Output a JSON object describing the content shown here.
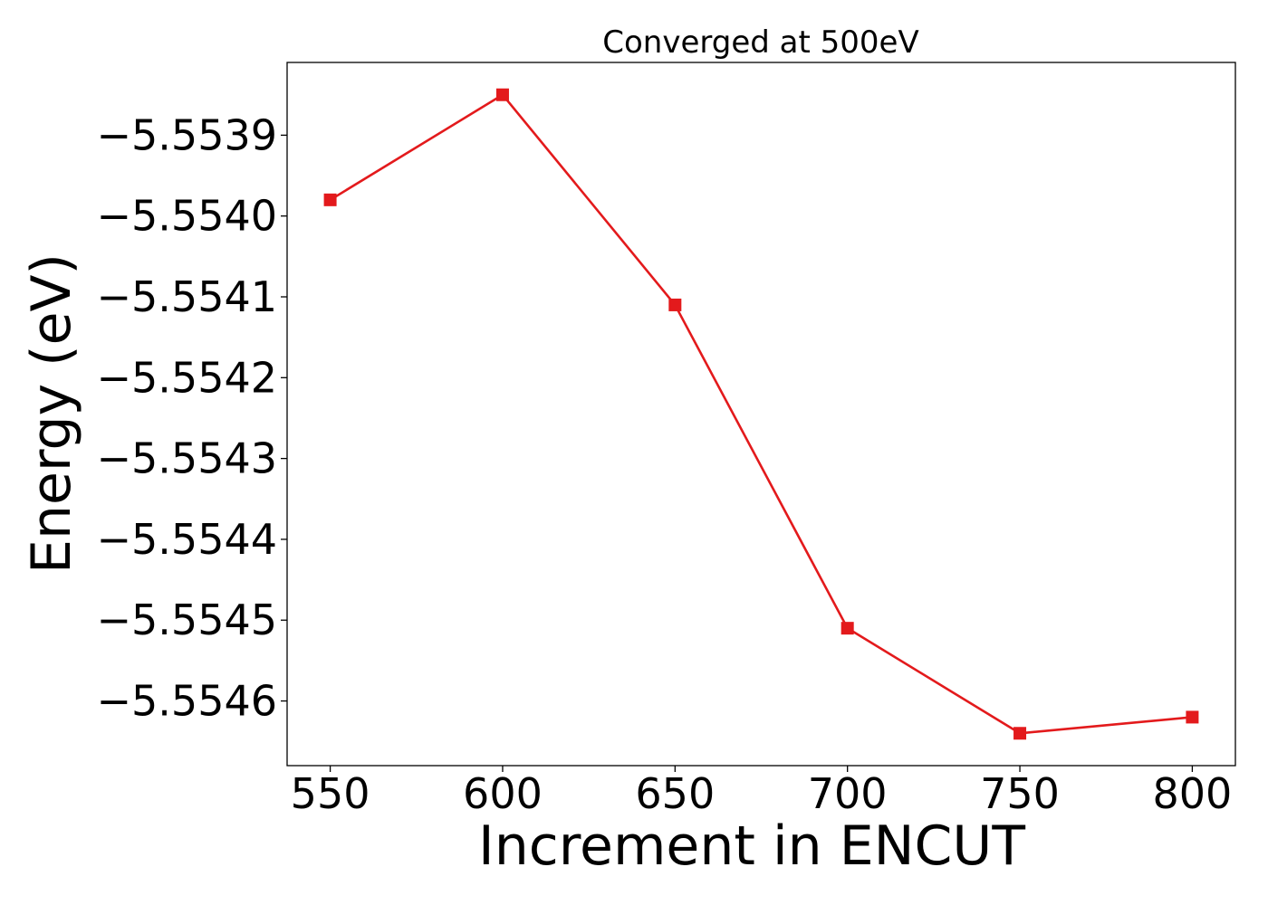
{
  "chart_data": {
    "type": "line",
    "title": "Converged at 500eV",
    "xlabel": "Increment in ENCUT",
    "ylabel": "Energy (eV)",
    "x": [
      550,
      600,
      650,
      700,
      750,
      800
    ],
    "series": [
      {
        "values": [
          -5.55398,
          -5.55385,
          -5.55411,
          -5.55451,
          -5.55464,
          -5.55462
        ],
        "color": "#e31a1c",
        "marker": "square"
      }
    ],
    "xlim": [
      537.5,
      812.5
    ],
    "ylim": [
      -5.55468,
      -5.55381
    ],
    "xticks": [
      550,
      600,
      650,
      700,
      750,
      800
    ],
    "xtick_labels": [
      "550",
      "600",
      "650",
      "700",
      "750",
      "800"
    ],
    "yticks": [
      -5.5539,
      -5.554,
      -5.5541,
      -5.5542,
      -5.5543,
      -5.5544,
      -5.5545,
      -5.5546
    ],
    "ytick_labels": [
      "−5.5539",
      "−5.5540",
      "−5.5541",
      "−5.5542",
      "−5.5543",
      "−5.5544",
      "−5.5545",
      "−5.5546"
    ],
    "grid": false,
    "legend": "none"
  }
}
